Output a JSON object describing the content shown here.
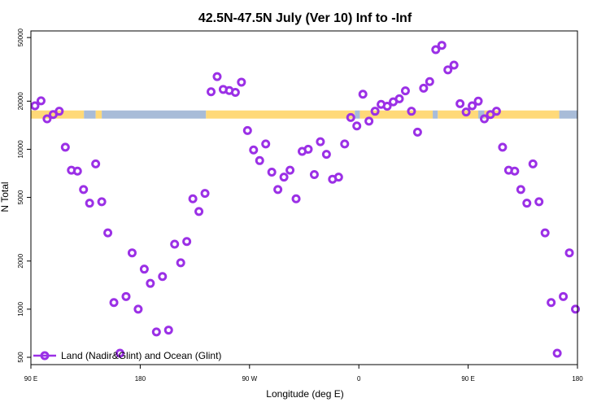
{
  "chart_data": {
    "type": "scatter",
    "title": "42.5N-47.5N July (Ver 10)   Inf to -Inf",
    "xlabel": "Longitude (deg E)",
    "ylabel": "N Total",
    "y_scale": "log",
    "xlim": [
      -90,
      180
    ],
    "ylim": [
      450,
      55000
    ],
    "x_ticks": [
      {
        "value": -90,
        "label": "90 E"
      },
      {
        "value": -36,
        "label": "180"
      },
      {
        "value": 18,
        "label": "90 W"
      },
      {
        "value": 72,
        "label": "0"
      },
      {
        "value": 126,
        "label": "90 E"
      },
      {
        "value": 180,
        "label": "180"
      }
    ],
    "y_ticks": [
      {
        "value": 500,
        "label": "500"
      },
      {
        "value": 1000,
        "label": "1000"
      },
      {
        "value": 2000,
        "label": "2000"
      },
      {
        "value": 5000,
        "label": "5000"
      },
      {
        "value": 10000,
        "label": "10000"
      },
      {
        "value": 20000,
        "label": "20000"
      },
      {
        "value": 50000,
        "label": "50000"
      }
    ],
    "legend": {
      "position": "bottom-left",
      "label": "Land (Nadir&Glint) and Ocean (Glint)",
      "color": "#9B30E6"
    },
    "colors": {
      "marker": "#9B30E6",
      "land": "#FFD978",
      "ocean": "#A8BCD8",
      "frame": "#000000"
    },
    "land_ocean_strip": {
      "y_value": 16500,
      "segments": [
        {
          "from": -90,
          "to": -63.8,
          "surface": "land"
        },
        {
          "from": -63.8,
          "to": -58,
          "surface": "ocean"
        },
        {
          "from": -58,
          "to": -55,
          "surface": "land"
        },
        {
          "from": -55,
          "to": -3.5,
          "surface": "ocean"
        },
        {
          "from": -3.5,
          "to": 70,
          "surface": "land"
        },
        {
          "from": 70,
          "to": 72.5,
          "surface": "ocean"
        },
        {
          "from": 72.5,
          "to": 108.5,
          "surface": "land"
        },
        {
          "from": 108.5,
          "to": 111,
          "surface": "ocean"
        },
        {
          "from": 111,
          "to": 131,
          "surface": "land"
        },
        {
          "from": 131,
          "to": 134,
          "surface": "ocean"
        },
        {
          "from": 134,
          "to": 171,
          "surface": "land"
        },
        {
          "from": 171,
          "to": 180,
          "surface": "ocean"
        }
      ]
    },
    "series": [
      {
        "name": "Land (Nadir&Glint) and Ocean (Glint)",
        "x": [
          -88,
          -85,
          -82,
          -79,
          -76,
          -73,
          -70,
          -67,
          -64,
          -61,
          -58,
          -55,
          -52,
          -49,
          -46,
          -43,
          -40,
          -37,
          -34,
          -31,
          -28,
          -25,
          -22,
          -19,
          -16,
          -13,
          -10,
          -7,
          -4,
          -1,
          2,
          5,
          8,
          11,
          14,
          17,
          20,
          23,
          26,
          29,
          32,
          35,
          38,
          41,
          44,
          47,
          50,
          53,
          56,
          59,
          62,
          65,
          68,
          71,
          74,
          77,
          80,
          83,
          86,
          89,
          92,
          95,
          98,
          101,
          104,
          107,
          110,
          113,
          116,
          119,
          122,
          125,
          128,
          131,
          134,
          137,
          140,
          143,
          146,
          149,
          152,
          155,
          158,
          161,
          164,
          167,
          170,
          173,
          176,
          179
        ],
        "y": [
          18700,
          20100,
          15500,
          16500,
          17300,
          10300,
          7400,
          7300,
          5600,
          4600,
          8100,
          4700,
          3000,
          1100,
          530,
          1200,
          2250,
          1000,
          1780,
          1450,
          720,
          1600,
          740,
          2550,
          1950,
          2650,
          4900,
          4080,
          5300,
          22900,
          28500,
          23700,
          23300,
          22700,
          26300,
          13100,
          9900,
          8500,
          10800,
          7200,
          5600,
          6700,
          7400,
          4900,
          9700,
          10000,
          6950,
          11150,
          9300,
          6500,
          6700,
          10800,
          15800,
          14000,
          22100,
          15000,
          17300,
          19100,
          18600,
          19800,
          20700,
          23200,
          17300,
          12800,
          24100,
          26500,
          42000,
          44700,
          31400,
          33600,
          19300,
          17100,
          18700,
          20000,
          15500,
          16500,
          17300,
          10300,
          7400,
          7300,
          5600,
          4600,
          8100,
          4700,
          3000,
          1100,
          530,
          1200,
          2250,
          1000
        ]
      }
    ]
  }
}
